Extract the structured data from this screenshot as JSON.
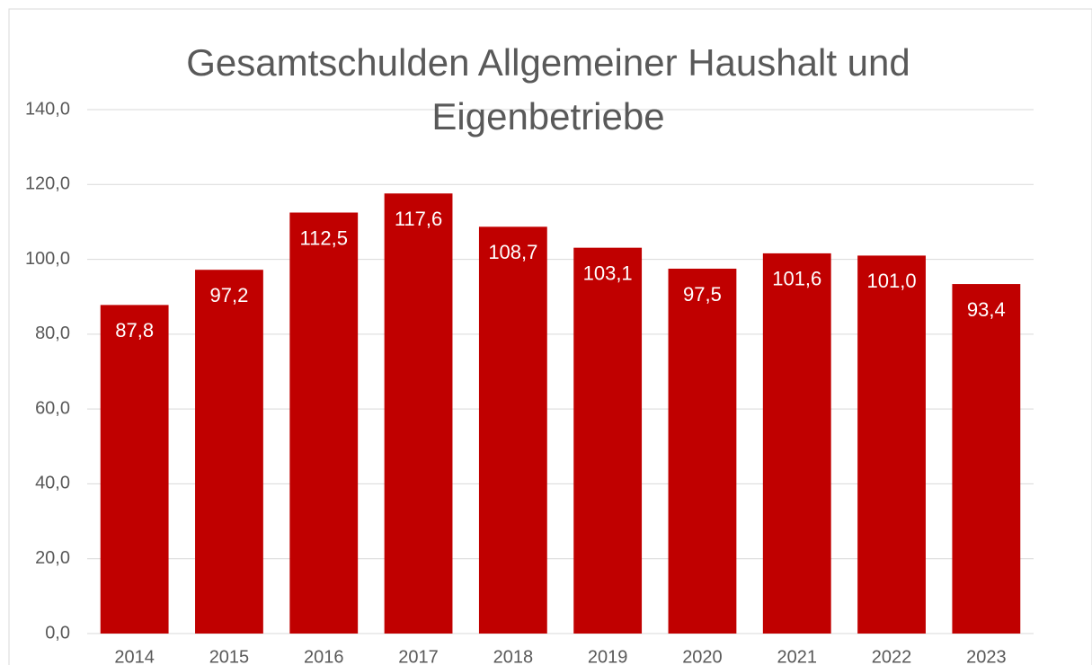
{
  "chart_data": {
    "type": "bar",
    "title": "Gesamtschulden Allgemeiner Haushalt und Eigenbetriebe",
    "categories": [
      "2014",
      "2015",
      "2016",
      "2017",
      "2018",
      "2019",
      "2020",
      "2021",
      "2022",
      "2023"
    ],
    "values": [
      87.8,
      97.2,
      112.5,
      117.6,
      108.7,
      103.1,
      97.5,
      101.6,
      101.0,
      93.4
    ],
    "value_labels": [
      "87,8",
      "97,2",
      "112,5",
      "117,6",
      "108,7",
      "103,1",
      "97,5",
      "101,6",
      "101,0",
      "93,4"
    ],
    "color": "#c00000",
    "ylim": [
      0,
      140
    ],
    "yticks": [
      {
        "value": 0,
        "label": "0,0"
      },
      {
        "value": 20,
        "label": "20,0"
      },
      {
        "value": 40,
        "label": "40,0"
      },
      {
        "value": 60,
        "label": "60,0"
      },
      {
        "value": 80,
        "label": "80,0"
      },
      {
        "value": 100,
        "label": "100,0"
      },
      {
        "value": 120,
        "label": "120,0"
      },
      {
        "value": 140,
        "label": "140,0"
      }
    ],
    "grid": true
  }
}
